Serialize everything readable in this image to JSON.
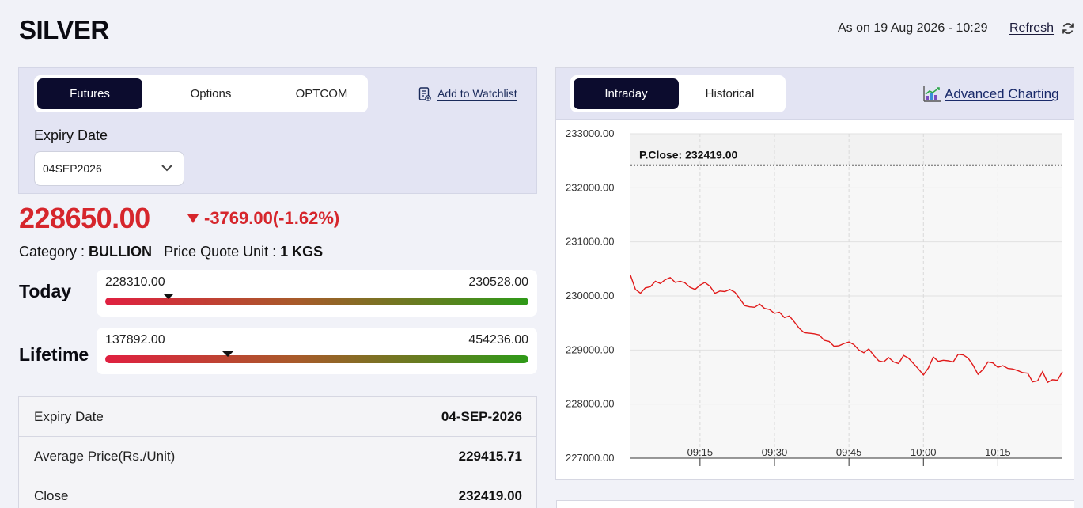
{
  "header": {
    "title": "SILVER",
    "as_on": "As on 19 Aug 2026 - 10:29",
    "refresh_label": "Refresh"
  },
  "left": {
    "tabs": [
      {
        "label": "Futures",
        "active": true
      },
      {
        "label": "Options",
        "active": false
      },
      {
        "label": "OPTCOM",
        "active": false
      }
    ],
    "watchlist_label": "Add to Watchlist",
    "expiry_label": "Expiry Date",
    "expiry_value": "04SEP2026",
    "price": "228650.00",
    "change": "-3769.00(-1.62%)",
    "category_label": "Category : ",
    "category_value": "BULLION",
    "unit_label": "Price Quote Unit : ",
    "unit_value": "1 KGS",
    "today": {
      "label": "Today",
      "low": "228310.00",
      "high": "230528.00",
      "position": 0.15
    },
    "lifetime": {
      "label": "Lifetime",
      "low": "137892.00",
      "high": "454236.00",
      "position": 0.29
    },
    "details": [
      {
        "key": "Expiry Date",
        "value": "04-SEP-2026"
      },
      {
        "key": "Average Price(Rs./Unit)",
        "value": "229415.71"
      },
      {
        "key": "Close",
        "value": "232419.00"
      }
    ]
  },
  "right": {
    "tabs": [
      {
        "label": "Intraday",
        "active": true
      },
      {
        "label": "Historical",
        "active": false
      }
    ],
    "advanced_label": "Advanced Charting"
  },
  "colors": {
    "navy": "#0c0c2e",
    "negative": "#d6262c",
    "line": "#e01a1a",
    "panel": "#e3e4f3"
  },
  "chart_data": {
    "type": "line",
    "pclose_label": "P.Close: 232419.00",
    "pclose": 232419,
    "ylim": [
      227000,
      233000
    ],
    "y_ticks": [
      "233000.00",
      "232000.00",
      "231000.00",
      "230000.00",
      "229000.00",
      "228000.00",
      "227000.00"
    ],
    "y_tick_values": [
      233000,
      232000,
      231000,
      230000,
      229000,
      228000,
      227000
    ],
    "x_ticks": [
      "09:15",
      "09:30",
      "09:45",
      "10:00",
      "10:15"
    ],
    "x_tick_minutes": [
      555,
      570,
      585,
      600,
      615
    ],
    "xlim": [
      541,
      628
    ],
    "series": [
      {
        "x": [
          541,
          542,
          543,
          544,
          545,
          546,
          547,
          548,
          549,
          550,
          551,
          552,
          553,
          554,
          555,
          556,
          557,
          558,
          559,
          560,
          561,
          562,
          563,
          564,
          565,
          566,
          567,
          568,
          569,
          570,
          571,
          572,
          573,
          574,
          575,
          576,
          577,
          578,
          579,
          580,
          581,
          582,
          583,
          584,
          585,
          586,
          587,
          588,
          589,
          590,
          591,
          592,
          593,
          594,
          595,
          596,
          597,
          598,
          599,
          600,
          601,
          602,
          603,
          604,
          605,
          606,
          607,
          608,
          609,
          610,
          611,
          612,
          613,
          614,
          615,
          616,
          617,
          618,
          619,
          620,
          621,
          622,
          623,
          624,
          625,
          626,
          627,
          628
        ],
        "y": [
          230380,
          230120,
          230050,
          230150,
          230170,
          230270,
          230230,
          230300,
          230340,
          230250,
          230270,
          230240,
          230160,
          230120,
          230200,
          230250,
          230180,
          230050,
          230090,
          230080,
          230120,
          230070,
          229950,
          229820,
          229800,
          229790,
          229850,
          229770,
          229750,
          229680,
          229700,
          229600,
          229630,
          229520,
          229400,
          229320,
          229310,
          229300,
          229280,
          229180,
          229160,
          229070,
          229080,
          229120,
          229150,
          229100,
          229000,
          228950,
          229020,
          228900,
          228800,
          228780,
          228860,
          228780,
          228750,
          228900,
          228850,
          228750,
          228650,
          228540,
          228670,
          228870,
          228790,
          228810,
          228800,
          228780,
          228920,
          228910,
          228850,
          228720,
          228550,
          228640,
          228780,
          228760,
          228680,
          228710,
          228660,
          228650,
          228620,
          228580,
          228570,
          228410,
          228430,
          228600,
          228400,
          228450,
          228440,
          228600
        ]
      }
    ]
  }
}
